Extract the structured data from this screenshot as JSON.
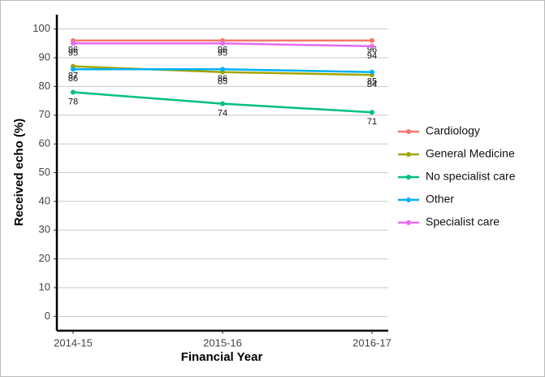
{
  "chart_data": {
    "type": "line",
    "x_label": "Financial Year",
    "y_label": "Received echo (%)",
    "categories": [
      "2014-15",
      "2015-16",
      "2016-17"
    ],
    "series": [
      {
        "name": "Cardiology",
        "color": "#F8766D",
        "values": [
          96,
          96,
          96
        ]
      },
      {
        "name": "General Medicine",
        "color": "#A3A500",
        "values": [
          87,
          85,
          84
        ]
      },
      {
        "name": "No specialist care",
        "color": "#00BF7D",
        "values": [
          78,
          74,
          71
        ]
      },
      {
        "name": "Other",
        "color": "#00B0F6",
        "values": [
          86,
          86,
          85
        ]
      },
      {
        "name": "Specialist care",
        "color": "#E76BF3",
        "values": [
          95,
          95,
          94
        ]
      }
    ],
    "ylim": [
      -5,
      105
    ],
    "yticks": [
      0,
      10,
      20,
      30,
      40,
      50,
      60,
      70,
      80,
      90,
      100
    ],
    "grid": true,
    "legend": "right"
  }
}
